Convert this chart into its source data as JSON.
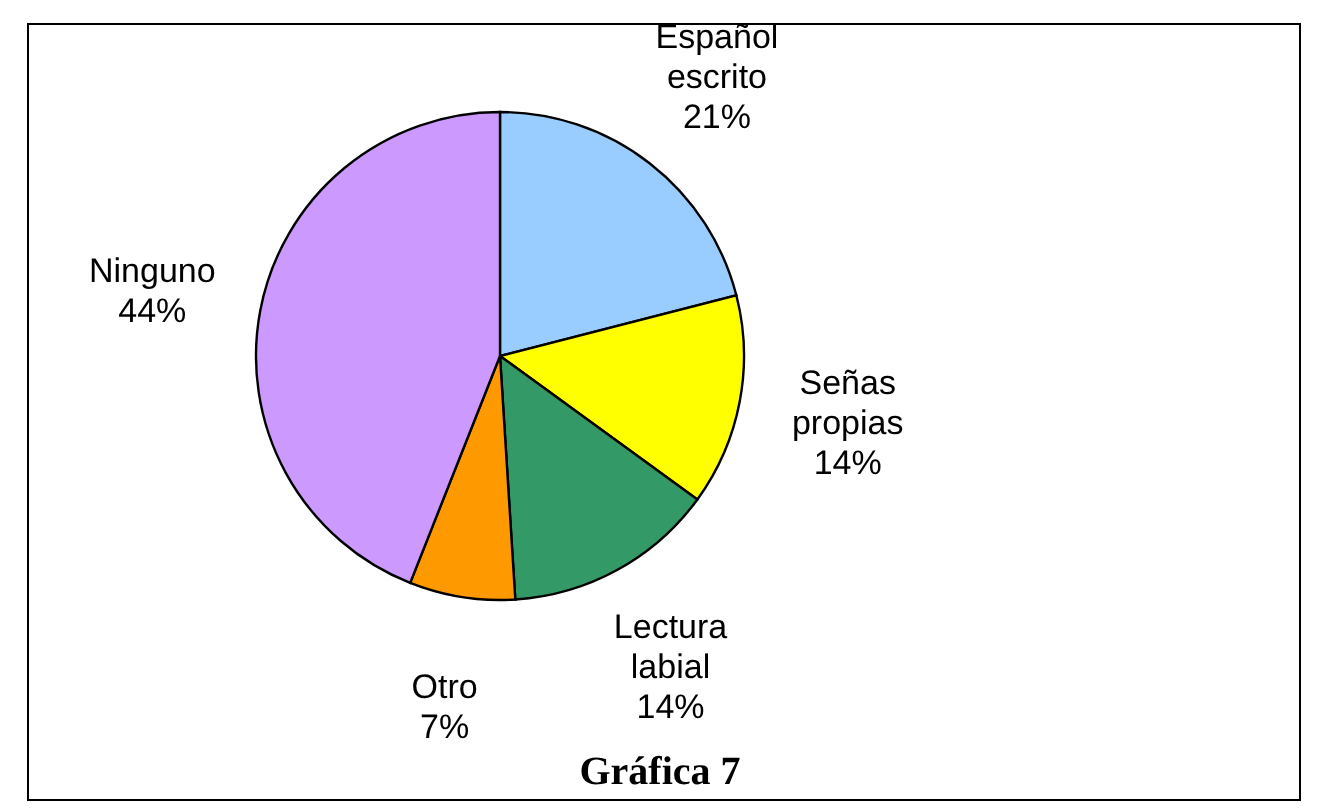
{
  "chart_data": {
    "type": "pie",
    "title": "Gráfica 7",
    "categories": [
      "Español escrito",
      "Señas propias",
      "Lectura labial",
      "Otro",
      "Ninguno"
    ],
    "values": [
      21,
      14,
      14,
      7,
      44
    ],
    "colors": [
      "#99ccff",
      "#ffff00",
      "#339966",
      "#ff9900",
      "#cc99ff"
    ],
    "value_labels": [
      "21%",
      "14%",
      "14%",
      "7%",
      "44%"
    ]
  }
}
